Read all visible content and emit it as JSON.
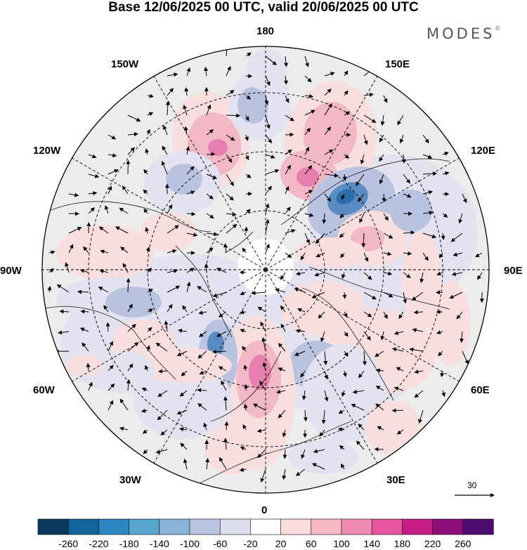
{
  "title": "Base 12/06/2025 00 UTC, valid 20/06/2025 00 UTC",
  "brand": {
    "name": "MODES",
    "mark": "©"
  },
  "longitude_labels": [
    {
      "id": "lon-180",
      "text": "180"
    },
    {
      "id": "lon-150e",
      "text": "150E"
    },
    {
      "id": "lon-120e",
      "text": "120E"
    },
    {
      "id": "lon-90e",
      "text": "90E"
    },
    {
      "id": "lon-60e",
      "text": "60E"
    },
    {
      "id": "lon-30e",
      "text": "30E"
    },
    {
      "id": "lon-0",
      "text": "0"
    },
    {
      "id": "lon-30w",
      "text": "30W"
    },
    {
      "id": "lon-60w",
      "text": "60W"
    },
    {
      "id": "lon-90w",
      "text": "90W"
    },
    {
      "id": "lon-120w",
      "text": "120W"
    },
    {
      "id": "lon-150w",
      "text": "150W"
    }
  ],
  "vector_reference": {
    "value": "30"
  },
  "colorbar": {
    "colors": [
      "#0c3a5c",
      "#12649a",
      "#2c86c0",
      "#58a4d0",
      "#8ab2d8",
      "#b8c6e2",
      "#dcdef0",
      "#ffffff",
      "#fadcdc",
      "#f5b8c4",
      "#f08cb4",
      "#e6559e",
      "#c81e88",
      "#8c1078",
      "#4e0c6e"
    ],
    "tick_labels": [
      "-260",
      "-220",
      "-180",
      "-140",
      "-100",
      "-60",
      "-20",
      "20",
      "60",
      "100",
      "140",
      "180",
      "220",
      "260"
    ]
  },
  "map": {
    "projection": "north polar stereographic",
    "anomaly_colors": {
      "positive_light": "#f8dede",
      "positive_mid": "#f3b8c6",
      "positive_strong": "#e77fb0",
      "negative_light": "#e2e2f0",
      "negative_mid": "#b9c3e0",
      "negative_strong": "#5a8cc4",
      "negative_core": "#2e6ea8",
      "neutral": "#ececec"
    }
  }
}
